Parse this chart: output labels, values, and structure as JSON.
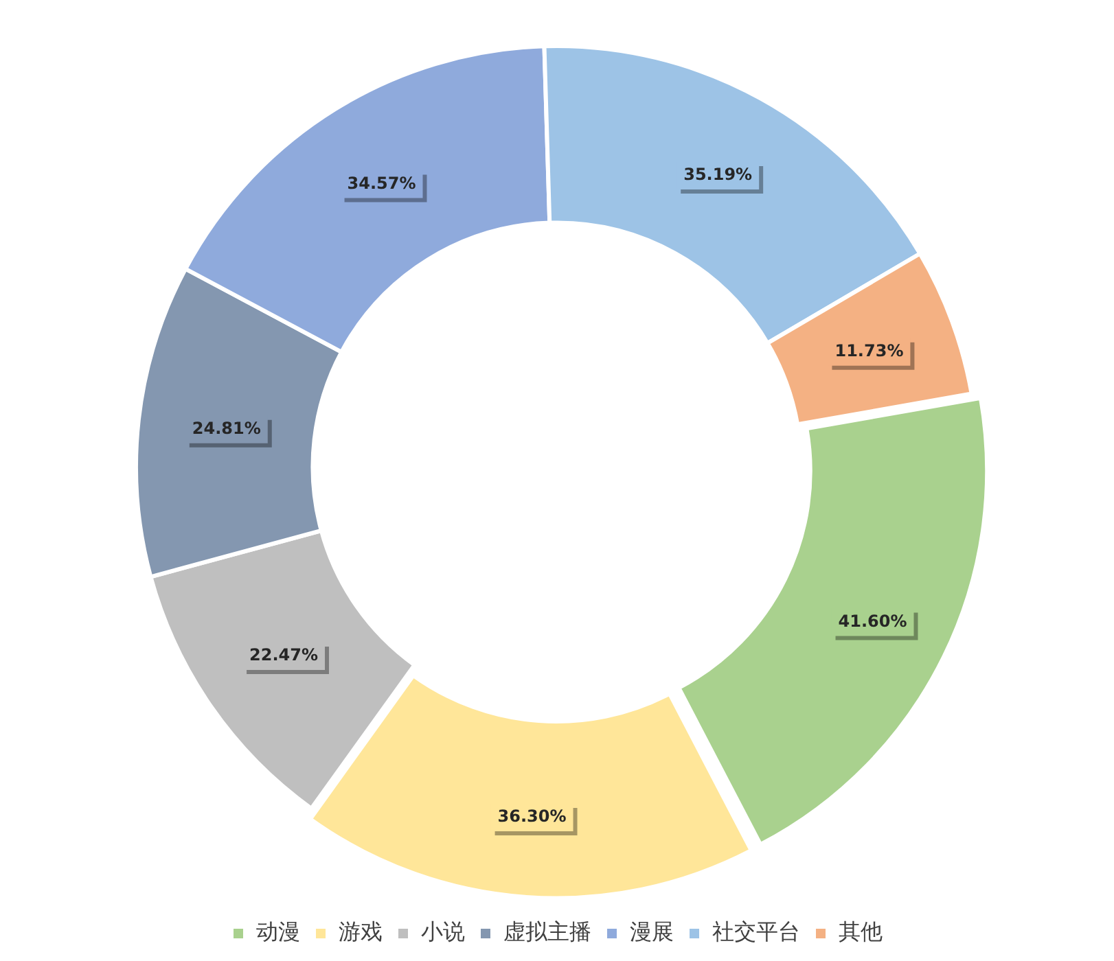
{
  "chart_data": {
    "type": "donut",
    "categories": [
      "动漫",
      "游戏",
      "小说",
      "虚拟主播",
      "漫展",
      "社交平台",
      "其他"
    ],
    "values": [
      41.6,
      36.3,
      22.47,
      24.81,
      34.57,
      35.19,
      11.73
    ],
    "value_labels": [
      "41.60%",
      "36.30%",
      "22.47%",
      "24.81%",
      "34.57%",
      "35.19%",
      "11.73%"
    ],
    "colors": [
      "#a9d18e",
      "#ffe699",
      "#bfbfbf",
      "#8497b0",
      "#8faadc",
      "#9dc3e6",
      "#f4b183"
    ],
    "legend": "bottom"
  }
}
